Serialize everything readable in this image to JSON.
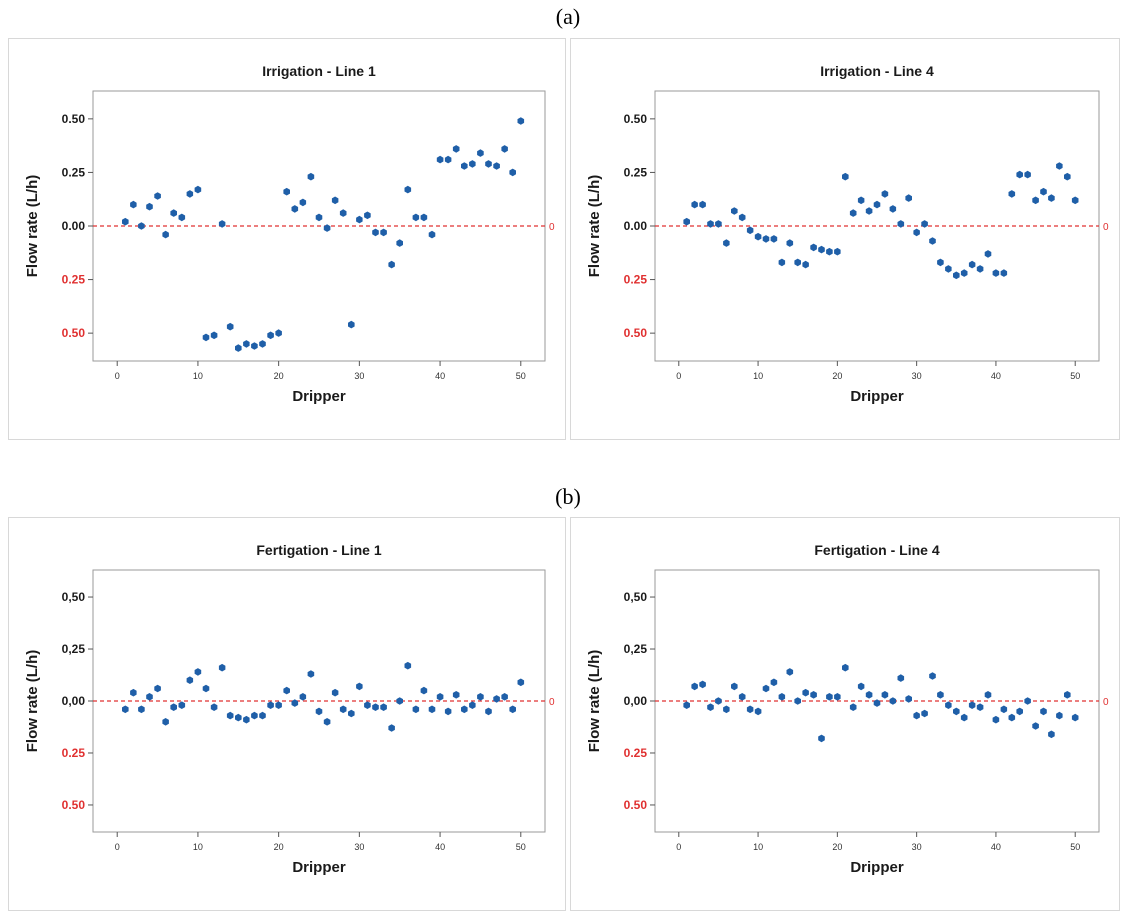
{
  "panel_labels": [
    "(a)",
    "(b)"
  ],
  "colors": {
    "marker": "#1f5fa8",
    "reference": "#e03030",
    "negative_tick": "#e03030",
    "positive_tick": "#1a1a1a",
    "frame": "#9a9a9a"
  },
  "chart_data": [
    {
      "type": "scatter",
      "title": "Irrigation - Line 1",
      "xlabel": "Dripper",
      "ylabel": "Flow rate (L/h)",
      "xlim": [
        -3,
        53
      ],
      "ylim": [
        -0.63,
        0.63
      ],
      "xticks": [
        "0",
        "10",
        "20",
        "30",
        "40",
        "50"
      ],
      "yticks": [
        "0.50",
        "0.25",
        "0.00",
        "0.25",
        "0.50"
      ],
      "reference_label": "0",
      "x": [
        1,
        2,
        3,
        4,
        5,
        6,
        7,
        8,
        9,
        10,
        11,
        12,
        13,
        14,
        15,
        16,
        17,
        18,
        19,
        20,
        21,
        22,
        23,
        24,
        25,
        26,
        27,
        28,
        29,
        30,
        31,
        32,
        33,
        34,
        35,
        36,
        37,
        38,
        39,
        40,
        41,
        42,
        43,
        44,
        45,
        46,
        47,
        48,
        49,
        50
      ],
      "y": [
        0.02,
        0.1,
        0.0,
        0.09,
        0.14,
        -0.04,
        0.06,
        0.04,
        0.15,
        0.17,
        -0.52,
        -0.51,
        0.01,
        -0.47,
        -0.57,
        -0.55,
        -0.56,
        -0.55,
        -0.51,
        -0.5,
        0.16,
        0.08,
        0.11,
        0.23,
        0.04,
        -0.01,
        0.12,
        0.06,
        -0.46,
        0.03,
        0.05,
        -0.03,
        -0.03,
        -0.18,
        -0.08,
        0.17,
        0.04,
        0.04,
        -0.04,
        0.31,
        0.31,
        0.36,
        0.28,
        0.29,
        0.34,
        0.29,
        0.28,
        0.36,
        0.25,
        0.49
      ]
    },
    {
      "type": "scatter",
      "title": "Irrigation - Line 4",
      "xlabel": "Dripper",
      "ylabel": "Flow rate (L/h)",
      "xlim": [
        -3,
        53
      ],
      "ylim": [
        -0.63,
        0.63
      ],
      "xticks": [
        "0",
        "10",
        "20",
        "30",
        "40",
        "50"
      ],
      "yticks": [
        "0.50",
        "0.25",
        "0.00",
        "0.25",
        "0.50"
      ],
      "reference_label": "0",
      "x": [
        1,
        2,
        3,
        4,
        5,
        6,
        7,
        8,
        9,
        10,
        11,
        12,
        13,
        14,
        15,
        16,
        17,
        18,
        19,
        20,
        21,
        22,
        23,
        24,
        25,
        26,
        27,
        28,
        29,
        30,
        31,
        32,
        33,
        34,
        35,
        36,
        37,
        38,
        39,
        40,
        41,
        42,
        43,
        44,
        45,
        46,
        47,
        48,
        49,
        50
      ],
      "y": [
        0.02,
        0.1,
        0.1,
        0.01,
        0.01,
        -0.08,
        0.07,
        0.04,
        -0.02,
        -0.05,
        -0.06,
        -0.06,
        -0.17,
        -0.08,
        -0.17,
        -0.18,
        -0.1,
        -0.11,
        -0.12,
        -0.12,
        0.23,
        0.06,
        0.12,
        0.07,
        0.1,
        0.15,
        0.08,
        0.01,
        0.13,
        -0.03,
        0.01,
        -0.07,
        -0.17,
        -0.2,
        -0.23,
        -0.22,
        -0.18,
        -0.2,
        -0.13,
        -0.22,
        -0.22,
        0.15,
        0.24,
        0.24,
        0.12,
        0.16,
        0.13,
        0.28,
        0.23,
        0.12
      ]
    },
    {
      "type": "scatter",
      "title": "Fertigation - Line 1",
      "xlabel": "Dripper",
      "ylabel": "Flow rate (L/h)",
      "xlim": [
        -3,
        53
      ],
      "ylim": [
        -0.63,
        0.63
      ],
      "xticks": [
        "0",
        "10",
        "20",
        "30",
        "40",
        "50"
      ],
      "yticks": [
        "0,50",
        "0,25",
        "0,00",
        "0.25",
        "0.50"
      ],
      "reference_label": "0",
      "x": [
        1,
        2,
        3,
        4,
        5,
        6,
        7,
        8,
        9,
        10,
        11,
        12,
        13,
        14,
        15,
        16,
        17,
        18,
        19,
        20,
        21,
        22,
        23,
        24,
        25,
        26,
        27,
        28,
        29,
        30,
        31,
        32,
        33,
        34,
        35,
        36,
        37,
        38,
        39,
        40,
        41,
        42,
        43,
        44,
        45,
        46,
        47,
        48,
        49,
        50
      ],
      "y": [
        -0.04,
        0.04,
        -0.04,
        0.02,
        0.06,
        -0.1,
        -0.03,
        -0.02,
        0.1,
        0.14,
        0.06,
        -0.03,
        0.16,
        -0.07,
        -0.08,
        -0.09,
        -0.07,
        -0.07,
        -0.02,
        -0.02,
        0.05,
        -0.01,
        0.02,
        0.13,
        -0.05,
        -0.1,
        0.04,
        -0.04,
        -0.06,
        0.07,
        -0.02,
        -0.03,
        -0.03,
        -0.13,
        0.0,
        0.17,
        -0.04,
        0.05,
        -0.04,
        0.02,
        -0.05,
        0.03,
        -0.04,
        -0.02,
        0.02,
        -0.05,
        0.01,
        0.02,
        -0.04,
        0.09
      ]
    },
    {
      "type": "scatter",
      "title": "Fertigation - Line 4",
      "xlabel": "Dripper",
      "ylabel": "Flow rate (L/h)",
      "xlim": [
        -3,
        53
      ],
      "ylim": [
        -0.63,
        0.63
      ],
      "xticks": [
        "0",
        "10",
        "20",
        "30",
        "40",
        "50"
      ],
      "yticks": [
        "0,50",
        "0,25",
        "0,00",
        "0.25",
        "0.50"
      ],
      "reference_label": "0",
      "x": [
        1,
        2,
        3,
        4,
        5,
        6,
        7,
        8,
        9,
        10,
        11,
        12,
        13,
        14,
        15,
        16,
        17,
        18,
        19,
        20,
        21,
        22,
        23,
        24,
        25,
        26,
        27,
        28,
        29,
        30,
        31,
        32,
        33,
        34,
        35,
        36,
        37,
        38,
        39,
        40,
        41,
        42,
        43,
        44,
        45,
        46,
        47,
        48,
        49,
        50
      ],
      "y": [
        -0.02,
        0.07,
        0.08,
        -0.03,
        0.0,
        -0.04,
        0.07,
        0.02,
        -0.04,
        -0.05,
        0.06,
        0.09,
        0.02,
        0.14,
        0.0,
        0.04,
        0.03,
        -0.18,
        0.02,
        0.02,
        0.16,
        -0.03,
        0.07,
        0.03,
        -0.01,
        0.03,
        0.0,
        0.11,
        0.01,
        -0.07,
        -0.06,
        0.12,
        0.03,
        -0.02,
        -0.05,
        -0.08,
        -0.02,
        -0.03,
        0.03,
        -0.09,
        -0.04,
        -0.08,
        -0.05,
        0.0,
        -0.12,
        -0.05,
        -0.16,
        -0.07,
        0.03,
        -0.08
      ]
    }
  ]
}
